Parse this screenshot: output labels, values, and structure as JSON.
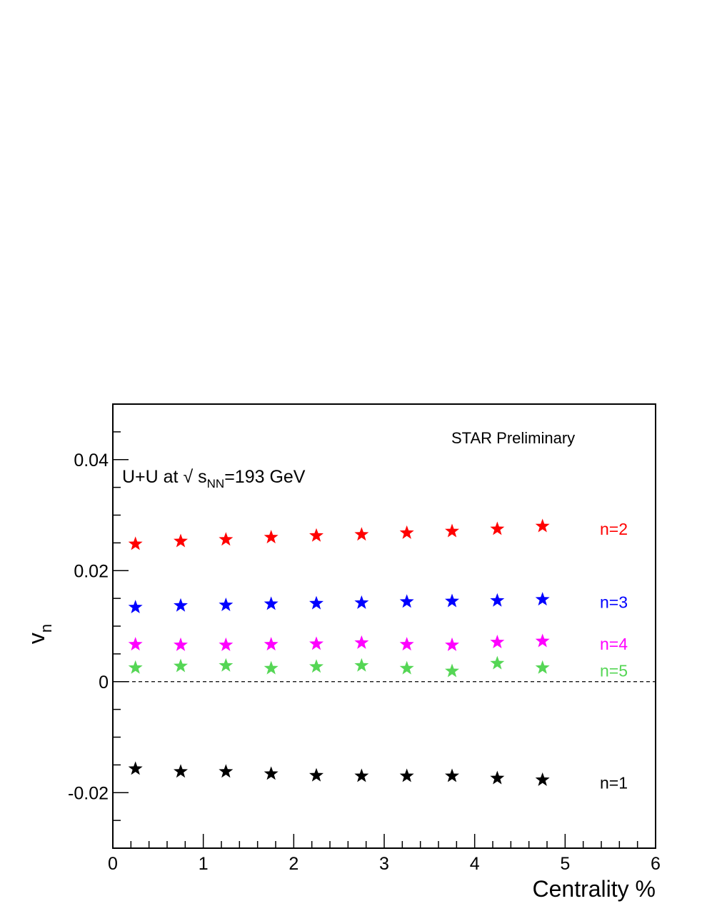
{
  "chart_data": {
    "type": "scatter",
    "title": "",
    "xlabel": "Centrality %",
    "ylabel_main": "v",
    "ylabel_sub": "n",
    "xlim": [
      0,
      6
    ],
    "ylim": [
      -0.03,
      0.05
    ],
    "x_ticks": [
      {
        "v": 0,
        "label": "0"
      },
      {
        "v": 1,
        "label": "1"
      },
      {
        "v": 2,
        "label": "2"
      },
      {
        "v": 3,
        "label": "3"
      },
      {
        "v": 4,
        "label": "4"
      },
      {
        "v": 5,
        "label": "5"
      },
      {
        "v": 6,
        "label": "6"
      }
    ],
    "y_ticks": [
      {
        "v": -0.02,
        "label": "-0.02"
      },
      {
        "v": 0,
        "label": "0"
      },
      {
        "v": 0.02,
        "label": "0.02"
      },
      {
        "v": 0.04,
        "label": "0.04"
      }
    ],
    "zero_line": true,
    "grid": false,
    "annotations": {
      "preliminary": "STAR Preliminary",
      "system_prefix": "U+U at ",
      "sqrt_symbol": "√",
      "s_letter": " s",
      "nn_sub": "NN",
      "energy": "=193 GeV"
    },
    "x": [
      0.25,
      0.75,
      1.25,
      1.75,
      2.25,
      2.75,
      3.25,
      3.75,
      4.25,
      4.75
    ],
    "series": [
      {
        "name": "n=2",
        "color": "#ff0000",
        "values": [
          0.0248,
          0.0253,
          0.0256,
          0.026,
          0.0263,
          0.0265,
          0.0268,
          0.0271,
          0.0275,
          0.028
        ]
      },
      {
        "name": "n=3",
        "color": "#0000ff",
        "values": [
          0.0134,
          0.0137,
          0.0138,
          0.014,
          0.0141,
          0.0142,
          0.0144,
          0.0145,
          0.0146,
          0.0148
        ]
      },
      {
        "name": "n=4",
        "color": "#ff00ff",
        "values": [
          0.0067,
          0.0066,
          0.0066,
          0.0067,
          0.0068,
          0.007,
          0.0067,
          0.0066,
          0.0071,
          0.0073
        ]
      },
      {
        "name": "n=5",
        "color": "#55d655",
        "values": [
          0.0025,
          0.0028,
          0.0029,
          0.0024,
          0.0027,
          0.0029,
          0.0024,
          0.0019,
          0.0033,
          0.0025
        ]
      },
      {
        "name": "n=1",
        "color": "#000000",
        "values": [
          -0.0157,
          -0.0162,
          -0.0162,
          -0.0166,
          -0.0169,
          -0.017,
          -0.017,
          -0.017,
          -0.0174,
          -0.0177
        ]
      }
    ]
  }
}
